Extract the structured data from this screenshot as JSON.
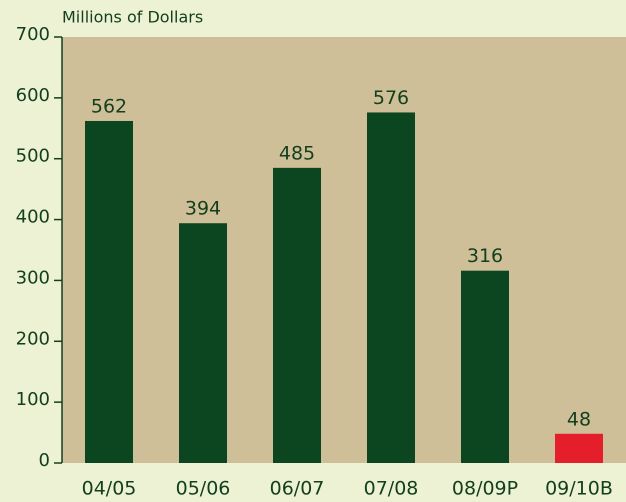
{
  "chart_data": {
    "type": "bar",
    "y_label": "Millions of Dollars",
    "categories": [
      "04/05",
      "05/06",
      "06/07",
      "07/08",
      "08/09P",
      "09/10B"
    ],
    "values": [
      562,
      394,
      485,
      576,
      316,
      48
    ],
    "colors": [
      "#0b4620",
      "#0b4620",
      "#0b4620",
      "#0b4620",
      "#0b4620",
      "#e41e2a"
    ],
    "ylim": [
      0,
      700
    ],
    "yticks": [
      0,
      100,
      200,
      300,
      400,
      500,
      600,
      700
    ],
    "plot_background": "#cfbf99"
  }
}
